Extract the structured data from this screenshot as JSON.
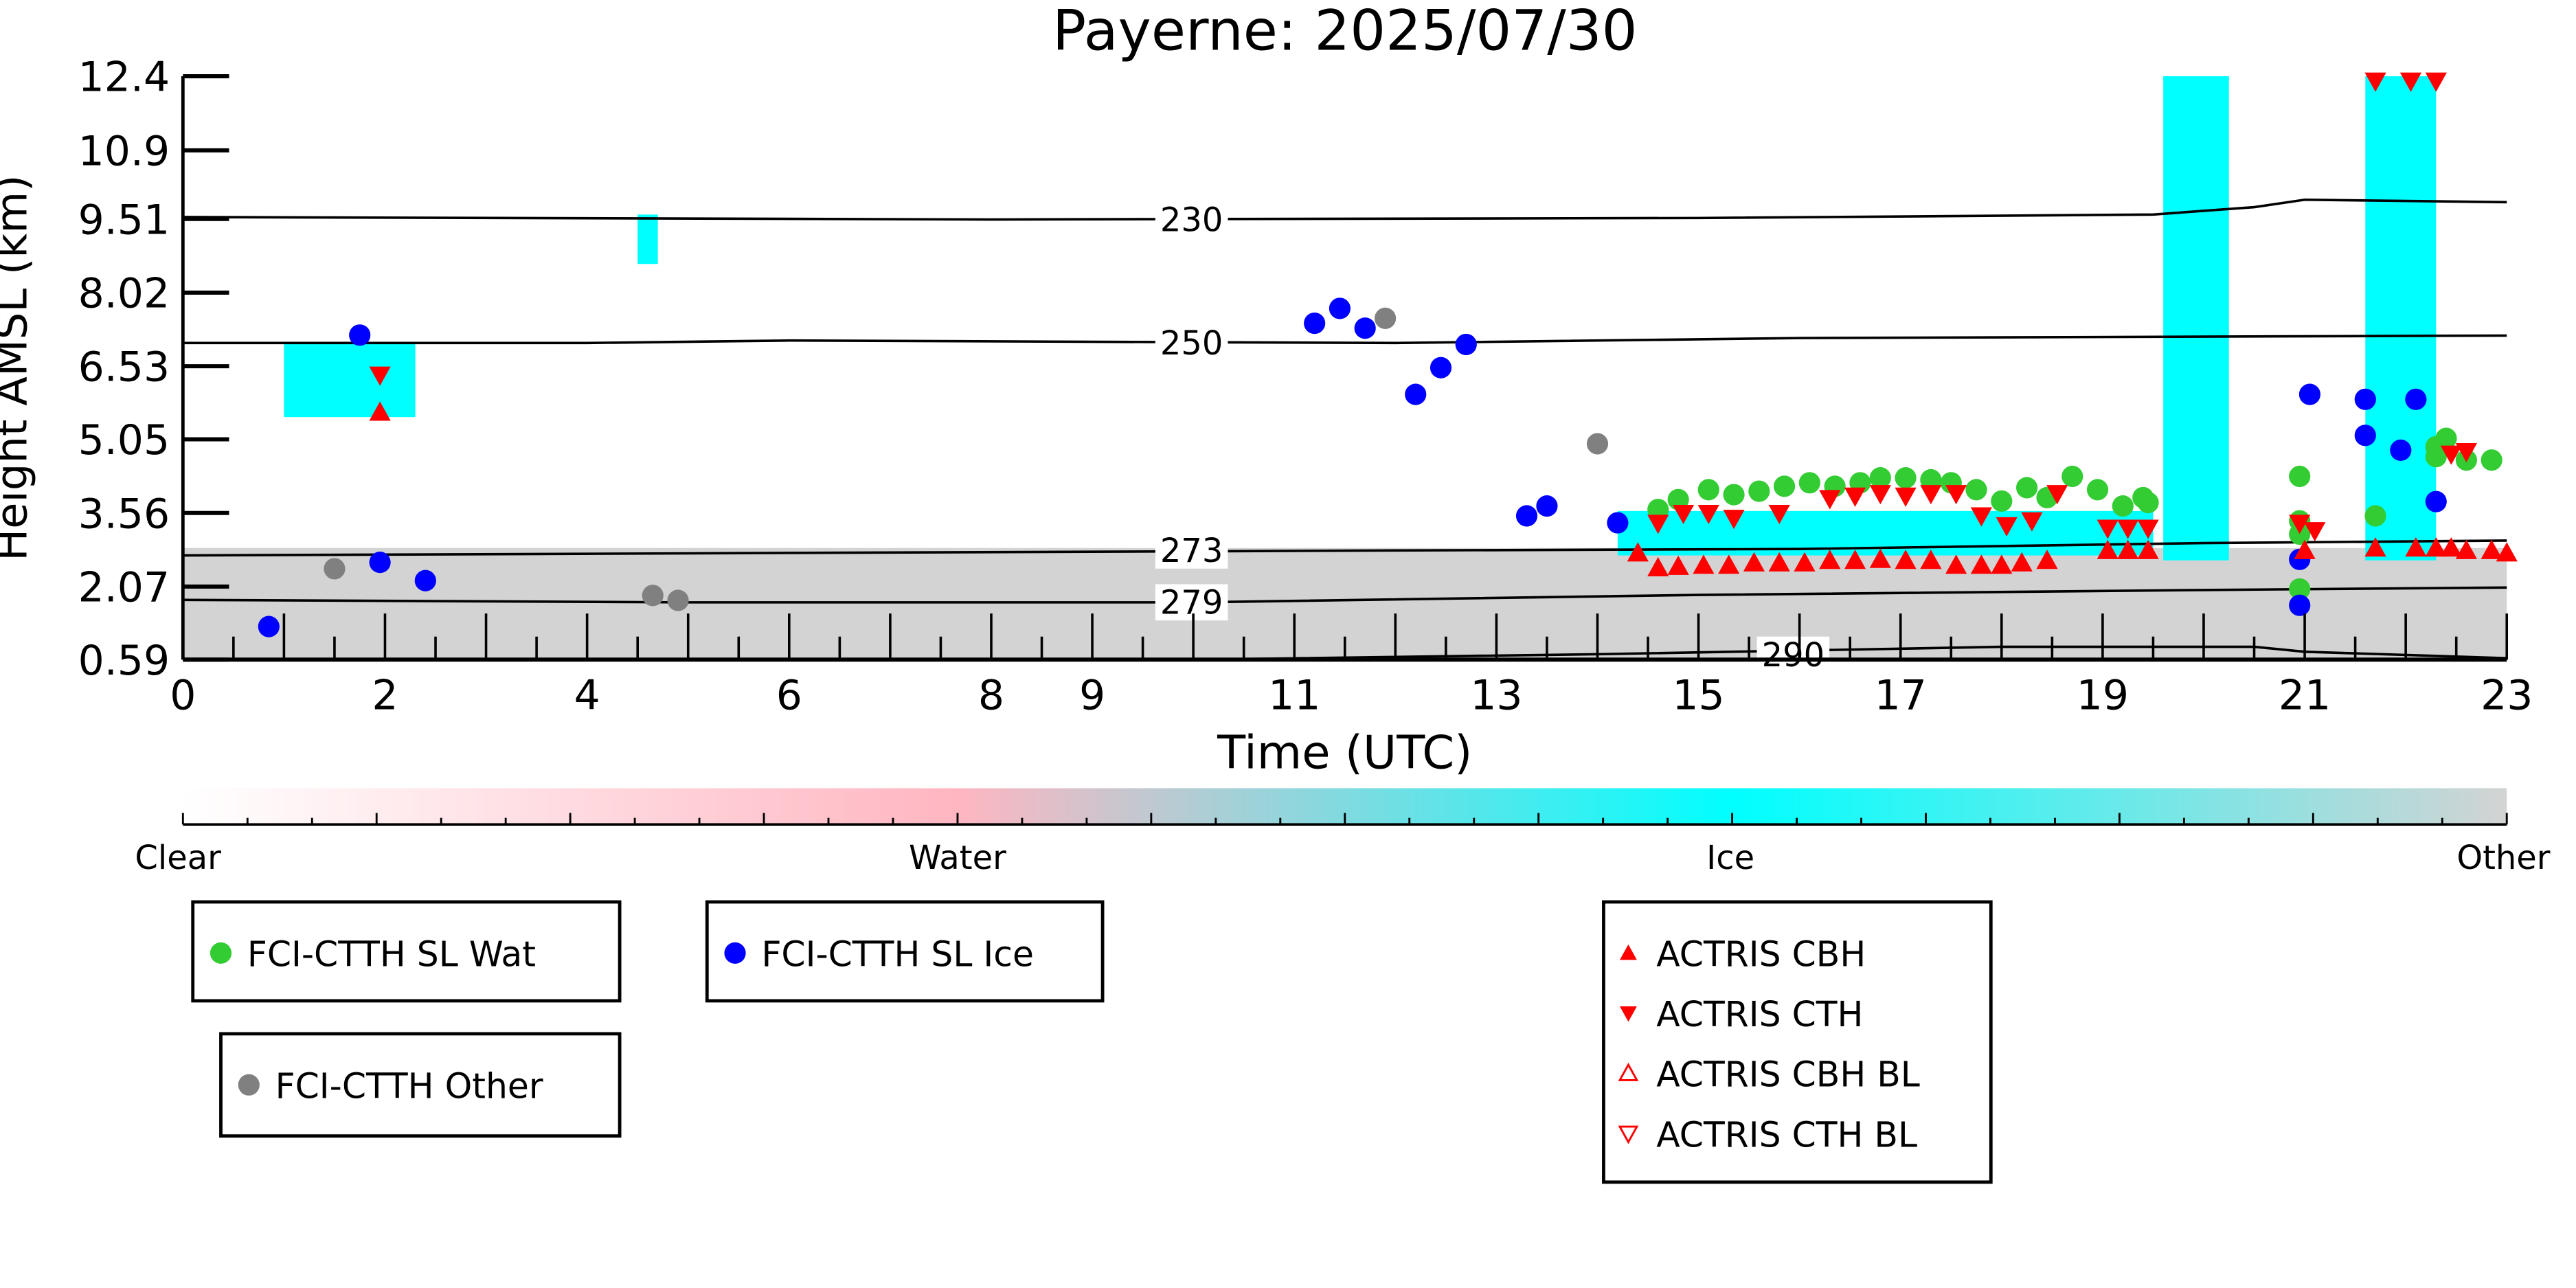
{
  "chart_data": {
    "type": "scatter",
    "title": "Payerne: 2025/07/30",
    "xlabel": "Time (UTC)",
    "ylabel": "Height AMSL (km)",
    "xlim": [
      0,
      23
    ],
    "ylim": [
      0.59,
      12.4
    ],
    "xticks": [
      "0",
      "2",
      "4",
      "6",
      "8",
      "9",
      "11",
      "13",
      "15",
      "17",
      "19",
      "21",
      "23"
    ],
    "xtick_values": [
      0,
      2,
      4,
      6,
      8,
      9,
      11,
      13,
      15,
      17,
      19,
      21,
      23
    ],
    "yticks": [
      "0.59",
      "2.07",
      "3.56",
      "5.05",
      "6.53",
      "8.02",
      "9.51",
      "10.9",
      "12.4"
    ],
    "ytick_values": [
      0.59,
      2.07,
      3.56,
      5.05,
      6.53,
      8.02,
      9.51,
      10.9,
      12.4
    ],
    "contours": [
      {
        "label": "230",
        "points": [
          [
            0,
            9.55
          ],
          [
            8,
            9.5
          ],
          [
            15,
            9.53
          ],
          [
            19.5,
            9.6
          ],
          [
            20.5,
            9.75
          ],
          [
            21,
            9.9
          ],
          [
            23,
            9.85
          ]
        ]
      },
      {
        "label": "250",
        "points": [
          [
            0,
            7.0
          ],
          [
            4,
            7.0
          ],
          [
            6,
            7.05
          ],
          [
            12,
            7.0
          ],
          [
            16,
            7.1
          ],
          [
            23,
            7.15
          ]
        ]
      },
      {
        "label": "273",
        "points": [
          [
            0,
            2.7
          ],
          [
            6,
            2.75
          ],
          [
            12,
            2.8
          ],
          [
            16,
            2.83
          ],
          [
            20,
            2.95
          ],
          [
            23,
            3.0
          ]
        ]
      },
      {
        "label": "279",
        "points": [
          [
            0,
            1.8
          ],
          [
            5,
            1.75
          ],
          [
            10,
            1.75
          ],
          [
            15,
            1.9
          ],
          [
            20,
            2.0
          ],
          [
            23,
            2.05
          ]
        ]
      },
      {
        "label": "290",
        "points": [
          [
            10,
            0.59
          ],
          [
            14,
            0.7
          ],
          [
            18,
            0.85
          ],
          [
            20.5,
            0.85
          ],
          [
            21,
            0.75
          ],
          [
            23,
            0.62
          ]
        ]
      }
    ],
    "colorbar": {
      "labels": [
        "Clear",
        "Water",
        "Ice",
        "Other"
      ],
      "colors": [
        "#ffffff",
        "#ffb6c1",
        "#00ffff",
        "#d3d3d3"
      ]
    },
    "series": [
      {
        "name": "FCI-CTTH SL Wat",
        "marker": "circle",
        "color": "#33cc33",
        "points": [
          [
            14.6,
            3.63
          ],
          [
            14.8,
            3.83
          ],
          [
            15.1,
            4.03
          ],
          [
            15.35,
            3.93
          ],
          [
            15.6,
            4.0
          ],
          [
            15.85,
            4.1
          ],
          [
            16.1,
            4.17
          ],
          [
            16.35,
            4.1
          ],
          [
            16.6,
            4.17
          ],
          [
            16.8,
            4.27
          ],
          [
            17.05,
            4.27
          ],
          [
            17.3,
            4.23
          ],
          [
            17.5,
            4.17
          ],
          [
            17.75,
            4.03
          ],
          [
            18.0,
            3.8
          ],
          [
            18.25,
            4.07
          ],
          [
            18.45,
            3.87
          ],
          [
            18.7,
            4.3
          ],
          [
            18.95,
            4.03
          ],
          [
            19.2,
            3.7
          ],
          [
            19.4,
            3.87
          ],
          [
            19.45,
            3.77
          ],
          [
            20.95,
            4.3
          ],
          [
            20.95,
            3.4
          ],
          [
            20.95,
            3.13
          ],
          [
            20.95,
            2.02
          ],
          [
            21.7,
            3.5
          ],
          [
            22.3,
            4.9
          ],
          [
            22.4,
            5.07
          ],
          [
            22.3,
            4.7
          ],
          [
            22.6,
            4.63
          ],
          [
            22.85,
            4.63
          ]
        ]
      },
      {
        "name": "FCI-CTTH SL Ice",
        "marker": "circle",
        "color": "#0000ff",
        "points": [
          [
            0.85,
            1.26
          ],
          [
            1.75,
            7.16
          ],
          [
            1.95,
            2.56
          ],
          [
            2.4,
            2.19
          ],
          [
            11.2,
            7.4
          ],
          [
            11.45,
            7.7
          ],
          [
            11.7,
            7.3
          ],
          [
            12.2,
            5.96
          ],
          [
            12.45,
            6.5
          ],
          [
            12.7,
            6.97
          ],
          [
            13.3,
            3.5
          ],
          [
            13.5,
            3.7
          ],
          [
            14.2,
            3.36
          ],
          [
            20.95,
            2.62
          ],
          [
            20.95,
            1.69
          ],
          [
            21.05,
            5.96
          ],
          [
            21.6,
            5.86
          ],
          [
            21.6,
            5.13
          ],
          [
            21.95,
            4.83
          ],
          [
            22.1,
            5.86
          ],
          [
            22.3,
            3.79
          ]
        ]
      },
      {
        "name": "FCI-CTTH Other",
        "marker": "circle",
        "color": "#808080",
        "points": [
          [
            1.5,
            2.43
          ],
          [
            4.65,
            1.89
          ],
          [
            4.9,
            1.79
          ],
          [
            11.9,
            7.5
          ],
          [
            14.0,
            4.96
          ]
        ]
      },
      {
        "name": "ACTRIS CBH",
        "marker": "triangle-up",
        "color": "#ff0000",
        "points": [
          [
            1.95,
            5.6
          ],
          [
            14.4,
            2.75
          ],
          [
            14.6,
            2.45
          ],
          [
            14.8,
            2.48
          ],
          [
            15.05,
            2.5
          ],
          [
            15.3,
            2.5
          ],
          [
            15.55,
            2.55
          ],
          [
            15.8,
            2.55
          ],
          [
            16.05,
            2.55
          ],
          [
            16.3,
            2.6
          ],
          [
            16.55,
            2.6
          ],
          [
            16.8,
            2.62
          ],
          [
            17.05,
            2.6
          ],
          [
            17.3,
            2.6
          ],
          [
            17.55,
            2.5
          ],
          [
            17.8,
            2.5
          ],
          [
            18.0,
            2.5
          ],
          [
            18.2,
            2.55
          ],
          [
            18.45,
            2.6
          ],
          [
            19.05,
            2.8
          ],
          [
            19.25,
            2.8
          ],
          [
            19.45,
            2.8
          ],
          [
            21.0,
            2.8
          ],
          [
            21.7,
            2.85
          ],
          [
            22.1,
            2.85
          ],
          [
            22.3,
            2.85
          ],
          [
            22.45,
            2.85
          ],
          [
            22.6,
            2.8
          ],
          [
            22.85,
            2.8
          ],
          [
            23.0,
            2.75
          ]
        ]
      },
      {
        "name": "ACTRIS CTH",
        "marker": "triangle-down",
        "color": "#ff0000",
        "points": [
          [
            1.95,
            6.35
          ],
          [
            14.6,
            3.35
          ],
          [
            14.85,
            3.55
          ],
          [
            15.1,
            3.55
          ],
          [
            15.35,
            3.45
          ],
          [
            15.8,
            3.55
          ],
          [
            16.3,
            3.85
          ],
          [
            16.55,
            3.9
          ],
          [
            16.8,
            3.95
          ],
          [
            17.05,
            3.9
          ],
          [
            17.3,
            3.95
          ],
          [
            17.55,
            3.95
          ],
          [
            17.8,
            3.5
          ],
          [
            18.05,
            3.3
          ],
          [
            18.3,
            3.4
          ],
          [
            18.55,
            3.95
          ],
          [
            19.05,
            3.25
          ],
          [
            19.25,
            3.25
          ],
          [
            19.45,
            3.25
          ],
          [
            20.95,
            3.35
          ],
          [
            21.1,
            3.2
          ],
          [
            21.7,
            12.3
          ],
          [
            22.05,
            12.3
          ],
          [
            22.3,
            12.3
          ],
          [
            22.45,
            4.75
          ],
          [
            22.6,
            4.8
          ]
        ]
      },
      {
        "name": "ACTRIS CBH BL",
        "marker": "triangle-up-open",
        "color": "#ff0000",
        "points": []
      },
      {
        "name": "ACTRIS CTH BL",
        "marker": "triangle-down-open",
        "color": "#ff0000",
        "points": []
      }
    ],
    "background_regions": [
      {
        "class": "Other",
        "x": [
          0,
          23
        ],
        "y": [
          0.59,
          2.85
        ]
      },
      {
        "class": "Ice",
        "x": [
          19.6,
          20.25
        ],
        "y": [
          2.6,
          12.4
        ]
      },
      {
        "class": "Ice",
        "x": [
          21.6,
          22.3
        ],
        "y": [
          2.6,
          12.4
        ]
      },
      {
        "class": "Ice",
        "x": [
          14.2,
          19.5
        ],
        "y": [
          2.7,
          3.6
        ]
      },
      {
        "class": "Ice",
        "x": [
          1.0,
          2.3
        ],
        "y": [
          5.5,
          7.0
        ]
      },
      {
        "class": "Ice",
        "x": [
          4.5,
          4.7
        ],
        "y": [
          8.6,
          9.6
        ]
      }
    ]
  },
  "legends": [
    {
      "items": [
        0
      ]
    },
    {
      "items": [
        1
      ]
    },
    {
      "items": [
        2
      ]
    },
    {
      "items": [
        3,
        4,
        5,
        6
      ]
    }
  ]
}
